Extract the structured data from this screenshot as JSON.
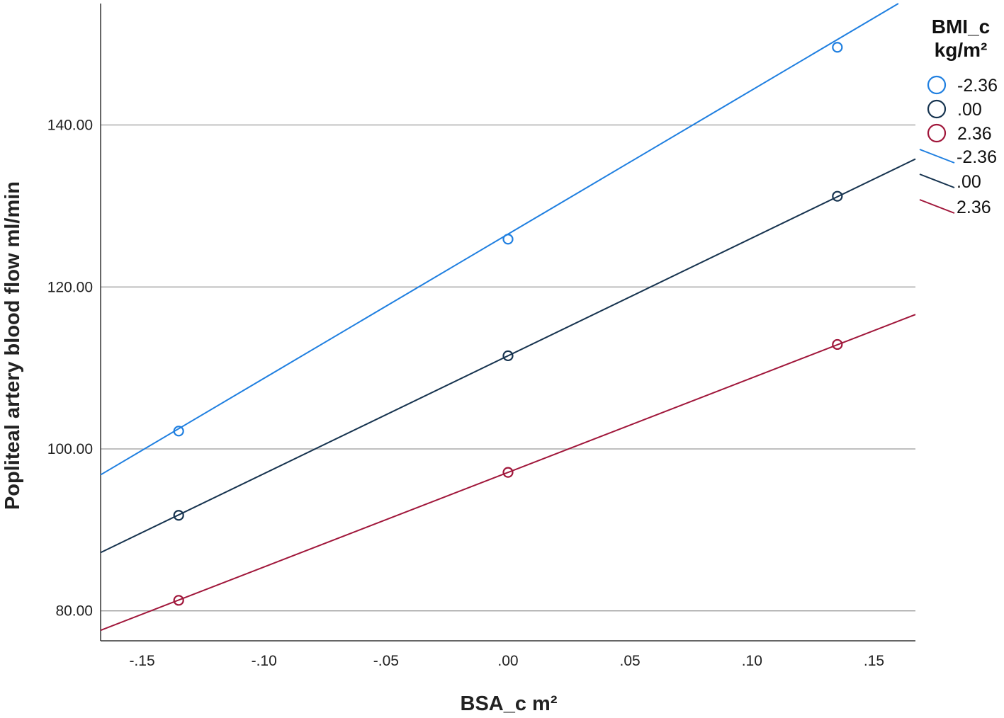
{
  "chart_data": {
    "type": "line",
    "title": "",
    "xlabel": "BSA_c m²",
    "ylabel": "Popliteal artery blood flow ml/min",
    "xlim": [
      -0.167,
      0.167
    ],
    "ylim": [
      76.3,
      155
    ],
    "x_ticks": [
      -0.15,
      -0.1,
      -0.05,
      0.0,
      0.05,
      0.1,
      0.15
    ],
    "x_tick_labels": [
      "-.15",
      "-.10",
      "-.05",
      ".00",
      ".05",
      ".10",
      ".15"
    ],
    "y_ticks": [
      80,
      100,
      120,
      140
    ],
    "y_tick_labels": [
      "80.00",
      "100.00",
      "120.00",
      "140.00"
    ],
    "grid": "horizontal",
    "legend": {
      "title_line1": "BMI_c",
      "title_line2": "kg/m²",
      "position": "right",
      "marker_labels": [
        "-2.36",
        ".00",
        "2.36"
      ],
      "line_labels": [
        "-2.36",
        ".00",
        "2.36"
      ]
    },
    "series": [
      {
        "name": "-2.36",
        "color": "#1f7fe0",
        "line_x": [
          -0.167,
          0.16
        ],
        "line_y": [
          96.8,
          155.0
        ],
        "points_x": [
          -0.135,
          0.0,
          0.135
        ],
        "points_y": [
          102.2,
          125.9,
          149.6
        ]
      },
      {
        "name": ".00",
        "color": "#16334f",
        "line_x": [
          -0.167,
          0.167
        ],
        "line_y": [
          87.2,
          135.8
        ],
        "points_x": [
          -0.135,
          0.0,
          0.135
        ],
        "points_y": [
          91.8,
          111.5,
          131.2
        ]
      },
      {
        "name": "2.36",
        "color": "#a0163a",
        "line_x": [
          -0.167,
          0.167
        ],
        "line_y": [
          77.6,
          116.6
        ],
        "points_x": [
          -0.135,
          0.0,
          0.135
        ],
        "points_y": [
          81.3,
          97.1,
          112.9
        ]
      }
    ]
  }
}
